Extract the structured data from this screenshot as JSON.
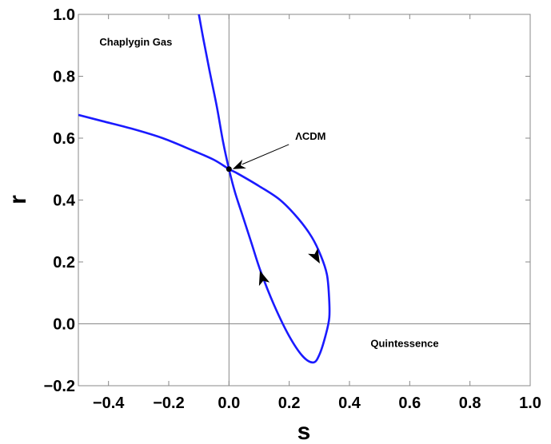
{
  "chart_data": {
    "type": "line",
    "title": "",
    "xlabel": "s",
    "ylabel": "r",
    "xlim": [
      -0.5,
      1.0
    ],
    "ylim": [
      -0.2,
      1.0
    ],
    "x_ticks": [
      "-0.4",
      "-0.2",
      "0.0",
      "0.2",
      "0.4",
      "0.6",
      "0.8",
      "1.0"
    ],
    "y_ticks": [
      "-0.2",
      "0.0",
      "0.2",
      "0.4",
      "0.6",
      "0.8",
      "1.0"
    ],
    "grid": false,
    "series": [
      {
        "color": "#1a1aff",
        "x": [
          -0.1,
          -0.085,
          -0.065,
          -0.04,
          -0.02,
          0.0,
          0.02,
          0.045,
          0.075,
          0.105,
          0.15,
          0.2,
          0.245,
          0.28,
          0.3,
          0.32,
          0.333,
          0.332,
          0.325,
          0.305,
          0.275,
          0.23,
          0.17,
          0.1,
          0.03,
          0.0,
          -0.05,
          -0.12,
          -0.22,
          -0.32,
          -0.42,
          -0.5
        ],
        "y": [
          1.0,
          0.92,
          0.82,
          0.7,
          0.59,
          0.5,
          0.425,
          0.35,
          0.26,
          0.17,
          0.06,
          -0.04,
          -0.105,
          -0.125,
          -0.1,
          -0.04,
          0.02,
          0.09,
          0.16,
          0.22,
          0.28,
          0.34,
          0.4,
          0.445,
          0.485,
          0.5,
          0.53,
          0.56,
          0.6,
          0.63,
          0.655,
          0.675
        ]
      }
    ],
    "arrows": [
      {
        "x": 0.29,
        "y": 0.215,
        "toward_x": 0.31,
        "toward_y": 0.18
      },
      {
        "x": 0.11,
        "y": 0.15,
        "toward_x": 0.1,
        "toward_y": 0.18
      }
    ],
    "point": {
      "x": 0.0,
      "y": 0.5,
      "color": "#000000"
    },
    "annotations": [
      {
        "text": "ΛCDM",
        "x": 0.22,
        "y": 0.595,
        "arrow_to": [
          0.012,
          0.5
        ]
      },
      {
        "text": "Chaplygin Gas",
        "x": -0.43,
        "y": 0.9
      },
      {
        "text": "Quintessence",
        "x": 0.47,
        "y": -0.075
      }
    ]
  }
}
